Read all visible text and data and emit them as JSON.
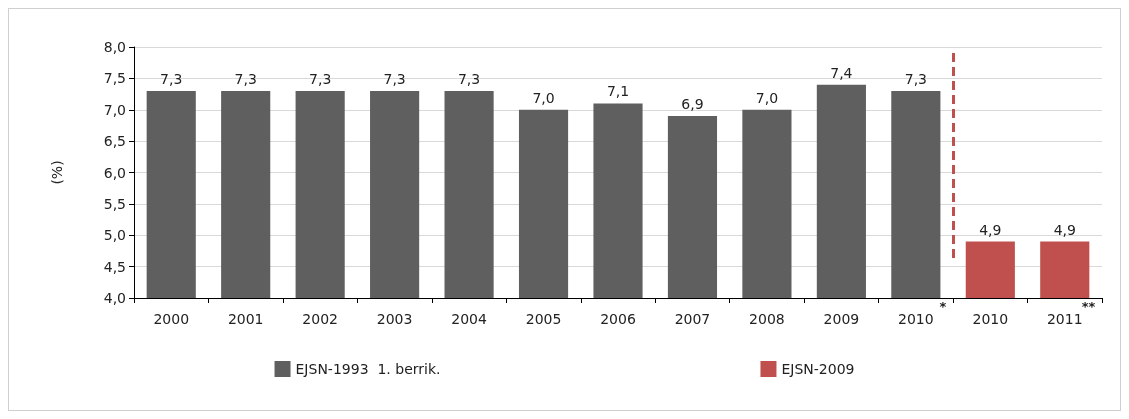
{
  "chart_data": {
    "type": "bar",
    "ylabel": "(%)",
    "categories": [
      "2000",
      "2001",
      "2002",
      "2003",
      "2004",
      "2005",
      "2006",
      "2007",
      "2008",
      "2009",
      "2010",
      "2010",
      "2011"
    ],
    "series": [
      {
        "name": "EJSN-1993  1. berrik.",
        "color": "#5f5f5f",
        "values": [
          7.3,
          7.3,
          7.3,
          7.3,
          7.3,
          7.0,
          7.1,
          6.9,
          7.0,
          7.4,
          7.3,
          null,
          null
        ],
        "value_labels": [
          "7,3",
          "7,3",
          "7,3",
          "7,3",
          "7,3",
          "7,0",
          "7,1",
          "6,9",
          "7,0",
          "7,4",
          "7,3",
          null,
          null
        ]
      },
      {
        "name": "EJSN-2009",
        "color": "#c0504d",
        "values": [
          null,
          null,
          null,
          null,
          null,
          null,
          null,
          null,
          null,
          null,
          null,
          4.9,
          4.9
        ],
        "value_labels": [
          null,
          null,
          null,
          null,
          null,
          null,
          null,
          null,
          null,
          null,
          null,
          "4,9",
          "4,9"
        ]
      }
    ],
    "stacked": true,
    "ylim": [
      4,
      8
    ],
    "yticks": [
      {
        "value": 4,
        "label": "4,0"
      },
      {
        "value": 4.5,
        "label": "4,5"
      },
      {
        "value": 5,
        "label": "5,0"
      },
      {
        "value": 5.5,
        "label": "5,5"
      },
      {
        "value": 6,
        "label": "6,0"
      },
      {
        "value": 6.5,
        "label": "6,5"
      },
      {
        "value": 7,
        "label": "7,0"
      },
      {
        "value": 7.5,
        "label": "7,5"
      },
      {
        "value": 8,
        "label": "8,0"
      }
    ],
    "grid": "y",
    "legend": "bottom",
    "annotations": [
      "*",
      "**"
    ]
  }
}
